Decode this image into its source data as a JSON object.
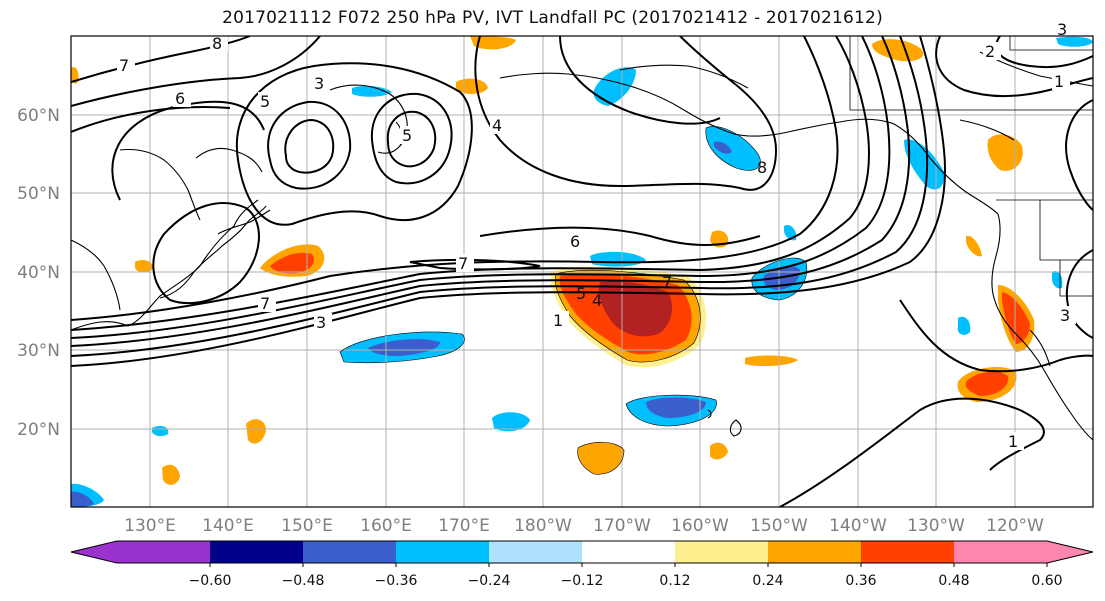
{
  "title": "2017021112 F072 250 hPa PV, IVT Landfall PC (2017021412 - 2017021612)",
  "map": {
    "lat_ticks": [
      {
        "label": "20°N",
        "value": 20
      },
      {
        "label": "30°N",
        "value": 30
      },
      {
        "label": "40°N",
        "value": 40
      },
      {
        "label": "50°N",
        "value": 50
      },
      {
        "label": "60°N",
        "value": 60
      }
    ],
    "lon_ticks": [
      {
        "label": "130°E",
        "value": 130
      },
      {
        "label": "140°E",
        "value": 140
      },
      {
        "label": "150°E",
        "value": 150
      },
      {
        "label": "160°E",
        "value": 160
      },
      {
        "label": "170°E",
        "value": 170
      },
      {
        "label": "180°W",
        "value": 180
      },
      {
        "label": "170°W",
        "value": 190
      },
      {
        "label": "160°W",
        "value": 200
      },
      {
        "label": "150°W",
        "value": 210
      },
      {
        "label": "140°W",
        "value": 220
      },
      {
        "label": "130°W",
        "value": 230
      },
      {
        "label": "120°W",
        "value": 240
      }
    ],
    "extent": {
      "lon_min": 120,
      "lon_max": 250,
      "lat_min": 10,
      "lat_max": 70
    }
  },
  "colorbar": {
    "colors": [
      "#9a32cd",
      "#00008b",
      "#3a5fcd",
      "#00bfff",
      "#b0e2ff",
      "#ffffff",
      "#fff08f",
      "#ffa500",
      "#ff4000",
      "#b22222",
      "#ff86b0"
    ],
    "under_color": "#9a32cd",
    "over_color": "#ff86b0",
    "tick_labels": [
      "−0.60",
      "−0.48",
      "−0.36",
      "−0.24",
      "−0.12",
      "0.12",
      "0.24",
      "0.36",
      "0.48",
      "0.60"
    ]
  },
  "contour_labels": [
    "8",
    "7",
    "6",
    "5",
    "3",
    "2",
    "1",
    "4",
    "5",
    "6",
    "7",
    "3",
    "1",
    "5",
    "4",
    "7",
    "6",
    "1",
    "8",
    "2",
    "3",
    "1",
    "3",
    "7"
  ]
}
